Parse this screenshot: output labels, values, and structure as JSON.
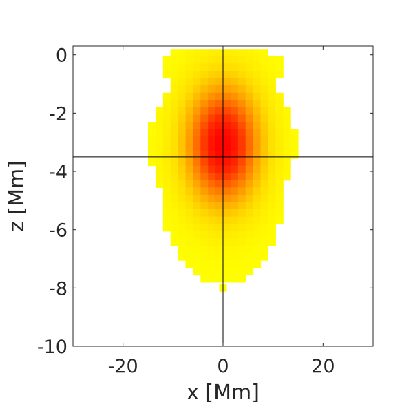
{
  "chart_data": {
    "type": "heatmap",
    "title": "",
    "xlabel": "x [Mm]",
    "ylabel": "z [Mm]",
    "xlim": [
      -30,
      30
    ],
    "ylim": [
      -10,
      0.3
    ],
    "x_ticks": [
      {
        "value": -20,
        "label": "-20"
      },
      {
        "value": 0,
        "label": "0"
      },
      {
        "value": 20,
        "label": "20"
      }
    ],
    "y_ticks": [
      {
        "value": 0,
        "label": "0"
      },
      {
        "value": -2,
        "label": "-2"
      },
      {
        "value": -4,
        "label": "-4"
      },
      {
        "value": -6,
        "label": "-6"
      },
      {
        "value": -8,
        "label": "-8"
      },
      {
        "value": -10,
        "label": "-10"
      }
    ],
    "grid": false,
    "crosshair": {
      "x": 0,
      "z": -3.5
    },
    "colormap": [
      "#ffff00",
      "#ffdd00",
      "#ffaa00",
      "#ff7000",
      "#ff3000",
      "#ff0000"
    ],
    "peak": {
      "x": 0,
      "z": -3.1,
      "value": 1.0
    },
    "blob_extent": {
      "z": [
        0.2,
        -0.2,
        -1.2,
        -2.0,
        -3.1,
        -3.6,
        -4.2,
        -5.0,
        -6.0,
        -7.0,
        -7.7
      ],
      "x_left": [
        -10.5,
        -12.2,
        -10.5,
        -13.5,
        -15.5,
        -14.5,
        -13.0,
        -12.2,
        -11.5,
        -8.5,
        -4.5
      ],
      "x_right": [
        8.5,
        12.2,
        10.5,
        13.5,
        15.0,
        14.0,
        13.0,
        12.0,
        11.0,
        8.5,
        4.5
      ]
    },
    "outlier_cells": [
      {
        "x": 0,
        "z": -8.0
      }
    ]
  }
}
